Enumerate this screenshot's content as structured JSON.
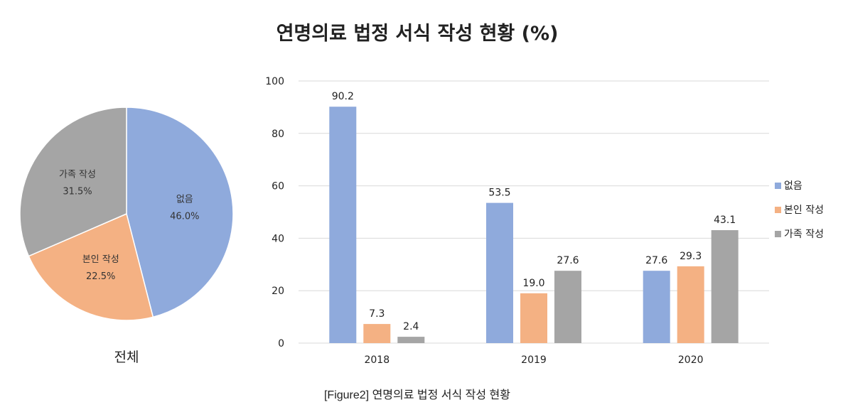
{
  "title": "연명의료 법정 서식 작성 현황 (%)",
  "caption": "[Figure2] 연명의료 법정 서식 작성 현황",
  "colors": {
    "none": "#8faadc",
    "self": "#f4b183",
    "family": "#a5a5a5",
    "grid": "#d9d9d9"
  },
  "chart_data": [
    {
      "type": "pie",
      "caption": "전체",
      "slices": [
        {
          "label": "없음",
          "value": 46.0,
          "value_text": "46.0%"
        },
        {
          "label": "본인 작성",
          "value": 22.5,
          "value_text": "22.5%"
        },
        {
          "label": "가족 작성",
          "value": 31.5,
          "value_text": "31.5%"
        }
      ]
    },
    {
      "type": "bar",
      "categories": [
        "2018",
        "2019",
        "2020"
      ],
      "ylim": [
        0,
        100
      ],
      "yticks": [
        0,
        20,
        40,
        60,
        80,
        100
      ],
      "grid": true,
      "legend_position": "right",
      "series": [
        {
          "name": "없음",
          "values": [
            90.2,
            53.5,
            27.6
          ],
          "labels": [
            "90.2",
            "53.5",
            "27.6"
          ]
        },
        {
          "name": "본인 작성",
          "values": [
            7.3,
            19.0,
            29.3
          ],
          "labels": [
            "7.3",
            "19.0",
            "29.3"
          ]
        },
        {
          "name": "가족 작성",
          "values": [
            2.4,
            27.6,
            43.1
          ],
          "labels": [
            "2.4",
            "27.6",
            "43.1"
          ]
        }
      ]
    }
  ]
}
